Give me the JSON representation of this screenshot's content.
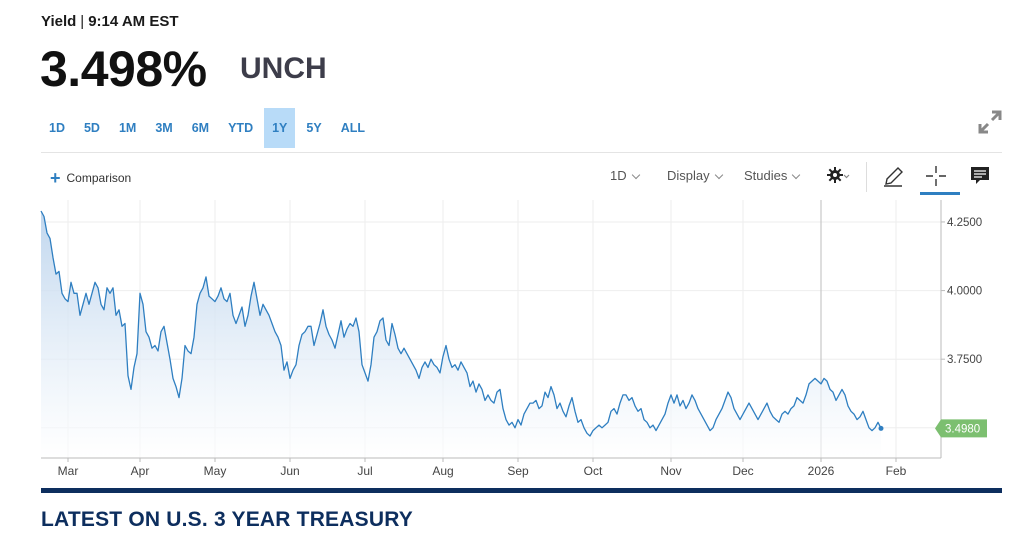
{
  "header": {
    "label": "Yield",
    "separator": "|",
    "time": "9:14 AM EST",
    "price": "3.498%",
    "change": "UNCH"
  },
  "ranges": [
    {
      "label": "1D",
      "active": false
    },
    {
      "label": "5D",
      "active": false
    },
    {
      "label": "1M",
      "active": false
    },
    {
      "label": "3M",
      "active": false
    },
    {
      "label": "6M",
      "active": false
    },
    {
      "label": "YTD",
      "active": false
    },
    {
      "label": "1Y",
      "active": true
    },
    {
      "label": "5Y",
      "active": false
    },
    {
      "label": "ALL",
      "active": false
    }
  ],
  "toolbar": {
    "comparison_plus": "+",
    "comparison_label": "Comparison",
    "interval_label": "1D",
    "display_label": "Display",
    "studies_label": "Studies"
  },
  "section": {
    "title": "LATEST ON U.S. 3 YEAR TREASURY"
  },
  "colors": {
    "line": "#2f7fc1",
    "area_top": "#b9d2ec",
    "last_badge": "#7cbf70",
    "accent": "#2f7fc1",
    "section_navy": "#0d2e5e"
  },
  "icons": [
    "plus-icon",
    "gear-icon",
    "pencil-icon",
    "crosshair-icon",
    "comment-icon",
    "expand-icon"
  ],
  "chart_data": {
    "type": "area",
    "title": "",
    "xlabel": "",
    "ylabel": "",
    "ylim": [
      3.39,
      4.33
    ],
    "y_ticks": [
      "4.2500",
      "4.0000",
      "3.7500"
    ],
    "y_tick_values": [
      4.25,
      4.0,
      3.75
    ],
    "last_value_label": "3.4980",
    "last_value": 3.498,
    "x_labels": [
      {
        "label": "Mar",
        "x": 0.09
      },
      {
        "label": "Apr",
        "x": 0.33
      },
      {
        "label": "May",
        "x": 0.58
      },
      {
        "label": "Jun",
        "x": 0.83
      },
      {
        "label": "Jul",
        "x": 1.08
      },
      {
        "label": "Aug",
        "x": 1.34
      },
      {
        "label": "Sep",
        "x": 1.59
      },
      {
        "label": "Oct",
        "x": 1.84
      },
      {
        "label": "Nov",
        "x": 2.1
      },
      {
        "label": "Dec",
        "x": 2.34
      },
      {
        "label": "2026",
        "x": 2.6
      },
      {
        "label": "Feb",
        "x": 2.85
      }
    ],
    "x_range": [
      0,
      3.0
    ],
    "marker_x": 2.6,
    "series": [
      {
        "values": [
          [
            0.0,
            4.29
          ],
          [
            0.01,
            4.27
          ],
          [
            0.02,
            4.21
          ],
          [
            0.03,
            4.19
          ],
          [
            0.04,
            4.12
          ],
          [
            0.05,
            4.06
          ],
          [
            0.06,
            4.07
          ],
          [
            0.07,
            3.99
          ],
          [
            0.08,
            3.97
          ],
          [
            0.09,
            3.96
          ],
          [
            0.1,
            4.03
          ],
          [
            0.11,
            3.99
          ],
          [
            0.12,
            3.99
          ],
          [
            0.13,
            3.91
          ],
          [
            0.14,
            3.95
          ],
          [
            0.15,
            3.99
          ],
          [
            0.16,
            3.95
          ],
          [
            0.17,
            3.99
          ],
          [
            0.18,
            4.03
          ],
          [
            0.19,
            4.01
          ],
          [
            0.2,
            3.95
          ],
          [
            0.21,
            3.93
          ],
          [
            0.22,
            4.01
          ],
          [
            0.23,
            3.99
          ],
          [
            0.24,
            4.01
          ],
          [
            0.25,
            3.91
          ],
          [
            0.26,
            3.93
          ],
          [
            0.27,
            3.87
          ],
          [
            0.28,
            3.88
          ],
          [
            0.29,
            3.69
          ],
          [
            0.3,
            3.64
          ],
          [
            0.31,
            3.72
          ],
          [
            0.32,
            3.77
          ],
          [
            0.33,
            3.99
          ],
          [
            0.34,
            3.95
          ],
          [
            0.35,
            3.85
          ],
          [
            0.36,
            3.83
          ],
          [
            0.37,
            3.79
          ],
          [
            0.38,
            3.8
          ],
          [
            0.39,
            3.78
          ],
          [
            0.4,
            3.85
          ],
          [
            0.41,
            3.87
          ],
          [
            0.42,
            3.81
          ],
          [
            0.43,
            3.75
          ],
          [
            0.44,
            3.68
          ],
          [
            0.45,
            3.65
          ],
          [
            0.46,
            3.61
          ],
          [
            0.47,
            3.68
          ],
          [
            0.48,
            3.8
          ],
          [
            0.49,
            3.78
          ],
          [
            0.5,
            3.77
          ],
          [
            0.51,
            3.83
          ],
          [
            0.52,
            3.95
          ],
          [
            0.53,
            3.99
          ],
          [
            0.54,
            4.01
          ],
          [
            0.55,
            4.05
          ],
          [
            0.56,
            3.98
          ],
          [
            0.57,
            3.97
          ],
          [
            0.58,
            3.96
          ],
          [
            0.59,
            3.98
          ],
          [
            0.6,
            4.01
          ],
          [
            0.61,
            3.97
          ],
          [
            0.62,
            3.96
          ],
          [
            0.63,
            3.99
          ],
          [
            0.64,
            3.91
          ],
          [
            0.65,
            3.88
          ],
          [
            0.66,
            3.91
          ],
          [
            0.67,
            3.94
          ],
          [
            0.68,
            3.87
          ],
          [
            0.69,
            3.91
          ],
          [
            0.7,
            3.98
          ],
          [
            0.71,
            4.03
          ],
          [
            0.72,
            3.97
          ],
          [
            0.73,
            3.91
          ],
          [
            0.74,
            3.95
          ],
          [
            0.75,
            3.93
          ],
          [
            0.76,
            3.91
          ],
          [
            0.77,
            3.88
          ],
          [
            0.78,
            3.85
          ],
          [
            0.79,
            3.83
          ],
          [
            0.8,
            3.8
          ],
          [
            0.81,
            3.71
          ],
          [
            0.82,
            3.74
          ],
          [
            0.83,
            3.68
          ],
          [
            0.84,
            3.71
          ],
          [
            0.85,
            3.73
          ],
          [
            0.86,
            3.8
          ],
          [
            0.87,
            3.84
          ],
          [
            0.88,
            3.85
          ],
          [
            0.89,
            3.87
          ],
          [
            0.9,
            3.87
          ],
          [
            0.91,
            3.8
          ],
          [
            0.92,
            3.84
          ],
          [
            0.93,
            3.88
          ],
          [
            0.94,
            3.93
          ],
          [
            0.95,
            3.87
          ],
          [
            0.96,
            3.84
          ],
          [
            0.97,
            3.82
          ],
          [
            0.98,
            3.79
          ],
          [
            0.99,
            3.84
          ],
          [
            1.0,
            3.89
          ],
          [
            1.01,
            3.83
          ],
          [
            1.02,
            3.86
          ],
          [
            1.03,
            3.88
          ],
          [
            1.04,
            3.87
          ],
          [
            1.05,
            3.9
          ],
          [
            1.06,
            3.85
          ],
          [
            1.07,
            3.73
          ],
          [
            1.08,
            3.7
          ],
          [
            1.09,
            3.67
          ],
          [
            1.1,
            3.73
          ],
          [
            1.11,
            3.83
          ],
          [
            1.12,
            3.85
          ],
          [
            1.13,
            3.89
          ],
          [
            1.14,
            3.9
          ],
          [
            1.15,
            3.82
          ],
          [
            1.16,
            3.8
          ],
          [
            1.17,
            3.88
          ],
          [
            1.18,
            3.84
          ],
          [
            1.19,
            3.79
          ],
          [
            1.2,
            3.77
          ],
          [
            1.21,
            3.79
          ],
          [
            1.22,
            3.77
          ],
          [
            1.23,
            3.75
          ],
          [
            1.24,
            3.73
          ],
          [
            1.25,
            3.71
          ],
          [
            1.26,
            3.68
          ],
          [
            1.27,
            3.72
          ],
          [
            1.28,
            3.74
          ],
          [
            1.29,
            3.72
          ],
          [
            1.3,
            3.75
          ],
          [
            1.31,
            3.73
          ],
          [
            1.32,
            3.72
          ],
          [
            1.33,
            3.7
          ],
          [
            1.34,
            3.76
          ],
          [
            1.35,
            3.8
          ],
          [
            1.36,
            3.75
          ],
          [
            1.37,
            3.72
          ],
          [
            1.38,
            3.73
          ],
          [
            1.39,
            3.71
          ],
          [
            1.4,
            3.74
          ],
          [
            1.41,
            3.72
          ],
          [
            1.42,
            3.7
          ],
          [
            1.43,
            3.65
          ],
          [
            1.44,
            3.67
          ],
          [
            1.45,
            3.63
          ],
          [
            1.46,
            3.66
          ],
          [
            1.47,
            3.64
          ],
          [
            1.48,
            3.6
          ],
          [
            1.49,
            3.62
          ],
          [
            1.5,
            3.6
          ],
          [
            1.51,
            3.59
          ],
          [
            1.52,
            3.63
          ],
          [
            1.53,
            3.64
          ],
          [
            1.54,
            3.57
          ],
          [
            1.55,
            3.53
          ],
          [
            1.56,
            3.51
          ],
          [
            1.57,
            3.52
          ],
          [
            1.58,
            3.5
          ],
          [
            1.59,
            3.53
          ],
          [
            1.6,
            3.51
          ],
          [
            1.61,
            3.55
          ],
          [
            1.62,
            3.57
          ],
          [
            1.63,
            3.59
          ],
          [
            1.64,
            3.59
          ],
          [
            1.65,
            3.6
          ],
          [
            1.66,
            3.57
          ],
          [
            1.67,
            3.58
          ],
          [
            1.68,
            3.63
          ],
          [
            1.69,
            3.61
          ],
          [
            1.7,
            3.65
          ],
          [
            1.71,
            3.62
          ],
          [
            1.72,
            3.57
          ],
          [
            1.73,
            3.59
          ],
          [
            1.74,
            3.56
          ],
          [
            1.75,
            3.54
          ],
          [
            1.76,
            3.58
          ],
          [
            1.77,
            3.61
          ],
          [
            1.78,
            3.56
          ],
          [
            1.79,
            3.52
          ],
          [
            1.8,
            3.53
          ],
          [
            1.81,
            3.5
          ],
          [
            1.82,
            3.48
          ],
          [
            1.83,
            3.47
          ],
          [
            1.84,
            3.49
          ],
          [
            1.85,
            3.5
          ],
          [
            1.86,
            3.51
          ],
          [
            1.87,
            3.5
          ],
          [
            1.88,
            3.51
          ],
          [
            1.89,
            3.52
          ],
          [
            1.9,
            3.56
          ],
          [
            1.91,
            3.57
          ],
          [
            1.92,
            3.55
          ],
          [
            1.93,
            3.59
          ],
          [
            1.94,
            3.62
          ],
          [
            1.95,
            3.62
          ],
          [
            1.96,
            3.6
          ],
          [
            1.97,
            3.61
          ],
          [
            1.98,
            3.58
          ],
          [
            1.99,
            3.56
          ],
          [
            2.0,
            3.57
          ],
          [
            2.01,
            3.53
          ],
          [
            2.02,
            3.52
          ],
          [
            2.03,
            3.5
          ],
          [
            2.04,
            3.51
          ],
          [
            2.05,
            3.49
          ],
          [
            2.06,
            3.51
          ],
          [
            2.07,
            3.53
          ],
          [
            2.08,
            3.55
          ],
          [
            2.09,
            3.59
          ],
          [
            2.1,
            3.62
          ],
          [
            2.11,
            3.59
          ],
          [
            2.12,
            3.62
          ],
          [
            2.13,
            3.58
          ],
          [
            2.14,
            3.6
          ],
          [
            2.15,
            3.57
          ],
          [
            2.16,
            3.59
          ],
          [
            2.17,
            3.62
          ],
          [
            2.18,
            3.6
          ],
          [
            2.19,
            3.57
          ],
          [
            2.2,
            3.55
          ],
          [
            2.21,
            3.53
          ],
          [
            2.22,
            3.51
          ],
          [
            2.23,
            3.49
          ],
          [
            2.24,
            3.5
          ],
          [
            2.25,
            3.53
          ],
          [
            2.26,
            3.55
          ],
          [
            2.27,
            3.57
          ],
          [
            2.28,
            3.6
          ],
          [
            2.29,
            3.63
          ],
          [
            2.3,
            3.61
          ],
          [
            2.31,
            3.57
          ],
          [
            2.32,
            3.55
          ],
          [
            2.33,
            3.53
          ],
          [
            2.34,
            3.55
          ],
          [
            2.35,
            3.57
          ],
          [
            2.36,
            3.59
          ],
          [
            2.37,
            3.57
          ],
          [
            2.38,
            3.55
          ],
          [
            2.39,
            3.53
          ],
          [
            2.4,
            3.55
          ],
          [
            2.41,
            3.57
          ],
          [
            2.42,
            3.59
          ],
          [
            2.43,
            3.56
          ],
          [
            2.44,
            3.54
          ],
          [
            2.45,
            3.53
          ],
          [
            2.46,
            3.52
          ],
          [
            2.47,
            3.55
          ],
          [
            2.48,
            3.56
          ],
          [
            2.49,
            3.55
          ],
          [
            2.5,
            3.57
          ],
          [
            2.51,
            3.58
          ],
          [
            2.52,
            3.61
          ],
          [
            2.53,
            3.6
          ],
          [
            2.54,
            3.59
          ],
          [
            2.55,
            3.62
          ],
          [
            2.56,
            3.66
          ],
          [
            2.57,
            3.67
          ],
          [
            2.58,
            3.68
          ],
          [
            2.59,
            3.67
          ],
          [
            2.6,
            3.66
          ],
          [
            2.61,
            3.68
          ],
          [
            2.62,
            3.67
          ],
          [
            2.63,
            3.64
          ],
          [
            2.64,
            3.63
          ],
          [
            2.65,
            3.6
          ],
          [
            2.66,
            3.62
          ],
          [
            2.67,
            3.64
          ],
          [
            2.68,
            3.62
          ],
          [
            2.69,
            3.58
          ],
          [
            2.7,
            3.56
          ],
          [
            2.71,
            3.55
          ],
          [
            2.72,
            3.53
          ],
          [
            2.73,
            3.54
          ],
          [
            2.74,
            3.56
          ],
          [
            2.75,
            3.53
          ],
          [
            2.76,
            3.5
          ],
          [
            2.77,
            3.49
          ],
          [
            2.78,
            3.5
          ],
          [
            2.79,
            3.52
          ],
          [
            2.8,
            3.498
          ]
        ]
      }
    ]
  }
}
